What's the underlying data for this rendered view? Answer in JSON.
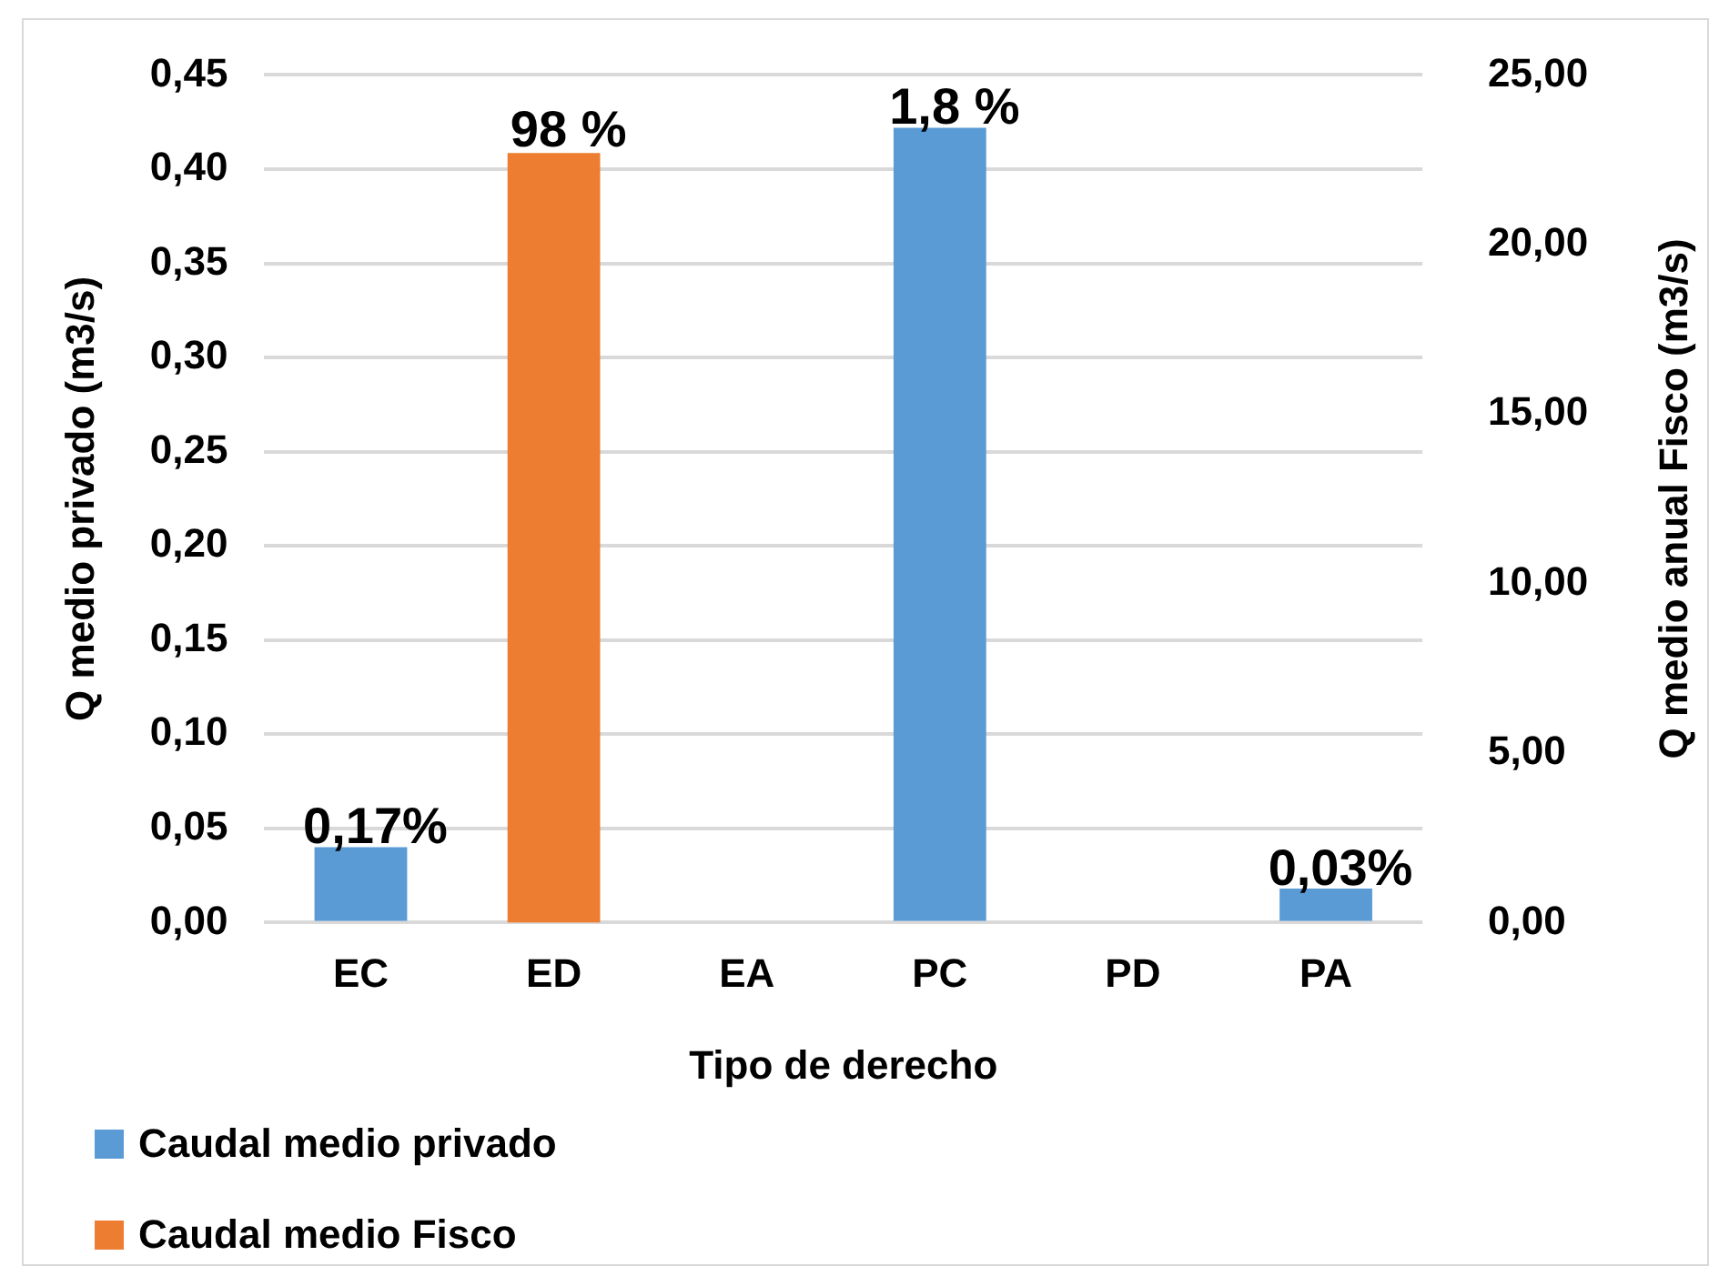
{
  "chart_data": {
    "type": "bar",
    "xlabel": "Tipo de derecho",
    "ylabel": "Q medio privado (m3/s)",
    "y2label": "Q medio anual Fisco (m3/s)",
    "categories": [
      "EC",
      "ED",
      "EA",
      "PC",
      "PD",
      "PA"
    ],
    "series": [
      {
        "name": "Caudal medio privado",
        "color": "#5b9bd5",
        "values": [
          0.04,
          null,
          null,
          0.422,
          null,
          0.018
        ]
      },
      {
        "name": "Caudal medio Fisco",
        "color": "#ed7d31",
        "axis": "y2",
        "values": [
          null,
          22.7,
          null,
          null,
          null,
          null
        ]
      }
    ],
    "annotations": [
      {
        "text": "0,17%",
        "x": "EC",
        "y": 0.04
      },
      {
        "text": "98 %",
        "x": "ED",
        "y": 0.41
      },
      {
        "text": "1,8 %",
        "x": "PC",
        "y": 0.422
      },
      {
        "text": "0,03%",
        "x": "PA",
        "y": 0.018
      }
    ],
    "ylim": [
      0,
      0.45
    ],
    "yticks": [
      {
        "value": 0,
        "label": "0,00"
      },
      {
        "value": 0.05,
        "label": "0,05"
      },
      {
        "value": 0.1,
        "label": "0,10"
      },
      {
        "value": 0.15,
        "label": "0,15"
      },
      {
        "value": 0.2,
        "label": "0,20"
      },
      {
        "value": 0.25,
        "label": "0,25"
      },
      {
        "value": 0.3,
        "label": "0,30"
      },
      {
        "value": 0.35,
        "label": "0,35"
      },
      {
        "value": 0.4,
        "label": "0,40"
      },
      {
        "value": 0.45,
        "label": "0,45"
      }
    ],
    "y2lim": [
      0,
      25
    ],
    "y2ticks": [
      {
        "value": 0,
        "label": "0,00"
      },
      {
        "value": 5,
        "label": "5,00"
      },
      {
        "value": 10,
        "label": "10,00"
      },
      {
        "value": 15,
        "label": "15,00"
      },
      {
        "value": 20,
        "label": "20,00"
      },
      {
        "value": 25,
        "label": "25,00"
      }
    ],
    "grid": "y",
    "legend": "bottom left"
  }
}
